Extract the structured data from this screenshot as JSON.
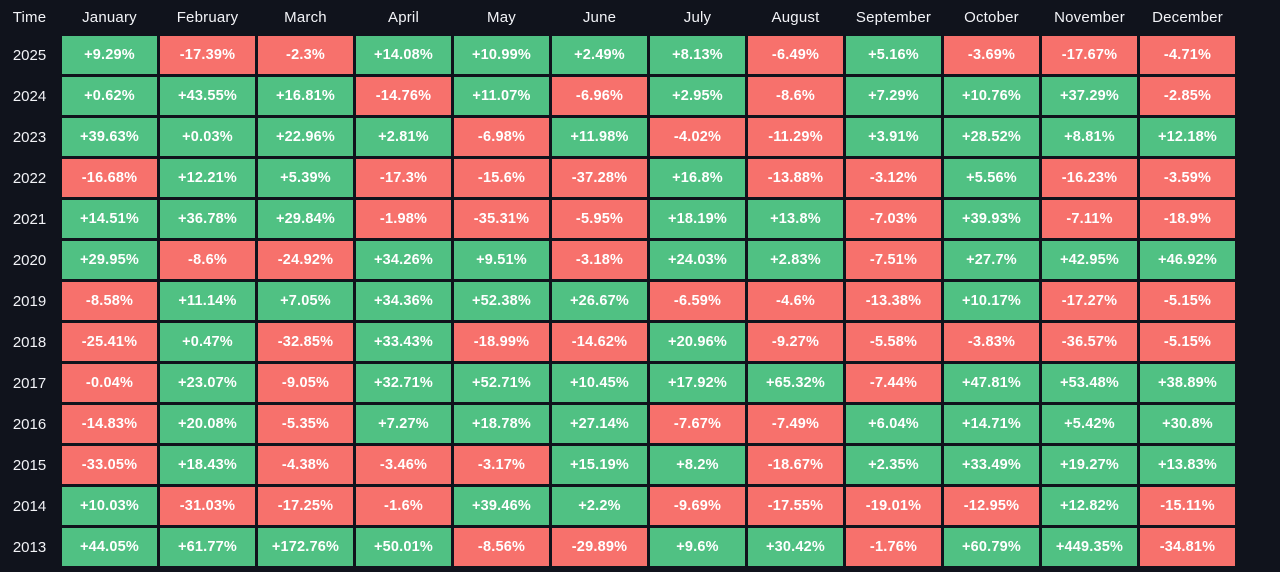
{
  "colors": {
    "positive": "#50c183",
    "negative": "#f7716c",
    "background": "#10131c",
    "text": "#ffffff"
  },
  "table": {
    "corner_label": "Time",
    "months": [
      "January",
      "February",
      "March",
      "April",
      "May",
      "June",
      "July",
      "August",
      "September",
      "October",
      "November",
      "December"
    ],
    "rows": [
      {
        "year": "2025",
        "values": [
          "+9.29%",
          "-17.39%",
          "-2.3%",
          "+14.08%",
          "+10.99%",
          "+2.49%",
          "+8.13%",
          "-6.49%",
          "+5.16%",
          "-3.69%",
          "-17.67%",
          "-4.71%"
        ]
      },
      {
        "year": "2024",
        "values": [
          "+0.62%",
          "+43.55%",
          "+16.81%",
          "-14.76%",
          "+11.07%",
          "-6.96%",
          "+2.95%",
          "-8.6%",
          "+7.29%",
          "+10.76%",
          "+37.29%",
          "-2.85%"
        ]
      },
      {
        "year": "2023",
        "values": [
          "+39.63%",
          "+0.03%",
          "+22.96%",
          "+2.81%",
          "-6.98%",
          "+11.98%",
          "-4.02%",
          "-11.29%",
          "+3.91%",
          "+28.52%",
          "+8.81%",
          "+12.18%"
        ]
      },
      {
        "year": "2022",
        "values": [
          "-16.68%",
          "+12.21%",
          "+5.39%",
          "-17.3%",
          "-15.6%",
          "-37.28%",
          "+16.8%",
          "-13.88%",
          "-3.12%",
          "+5.56%",
          "-16.23%",
          "-3.59%"
        ]
      },
      {
        "year": "2021",
        "values": [
          "+14.51%",
          "+36.78%",
          "+29.84%",
          "-1.98%",
          "-35.31%",
          "-5.95%",
          "+18.19%",
          "+13.8%",
          "-7.03%",
          "+39.93%",
          "-7.11%",
          "-18.9%"
        ]
      },
      {
        "year": "2020",
        "values": [
          "+29.95%",
          "-8.6%",
          "-24.92%",
          "+34.26%",
          "+9.51%",
          "-3.18%",
          "+24.03%",
          "+2.83%",
          "-7.51%",
          "+27.7%",
          "+42.95%",
          "+46.92%"
        ]
      },
      {
        "year": "2019",
        "values": [
          "-8.58%",
          "+11.14%",
          "+7.05%",
          "+34.36%",
          "+52.38%",
          "+26.67%",
          "-6.59%",
          "-4.6%",
          "-13.38%",
          "+10.17%",
          "-17.27%",
          "-5.15%"
        ]
      },
      {
        "year": "2018",
        "values": [
          "-25.41%",
          "+0.47%",
          "-32.85%",
          "+33.43%",
          "-18.99%",
          "-14.62%",
          "+20.96%",
          "-9.27%",
          "-5.58%",
          "-3.83%",
          "-36.57%",
          "-5.15%"
        ]
      },
      {
        "year": "2017",
        "values": [
          "-0.04%",
          "+23.07%",
          "-9.05%",
          "+32.71%",
          "+52.71%",
          "+10.45%",
          "+17.92%",
          "+65.32%",
          "-7.44%",
          "+47.81%",
          "+53.48%",
          "+38.89%"
        ]
      },
      {
        "year": "2016",
        "values": [
          "-14.83%",
          "+20.08%",
          "-5.35%",
          "+7.27%",
          "+18.78%",
          "+27.14%",
          "-7.67%",
          "-7.49%",
          "+6.04%",
          "+14.71%",
          "+5.42%",
          "+30.8%"
        ]
      },
      {
        "year": "2015",
        "values": [
          "-33.05%",
          "+18.43%",
          "-4.38%",
          "-3.46%",
          "-3.17%",
          "+15.19%",
          "+8.2%",
          "-18.67%",
          "+2.35%",
          "+33.49%",
          "+19.27%",
          "+13.83%"
        ]
      },
      {
        "year": "2014",
        "values": [
          "+10.03%",
          "-31.03%",
          "-17.25%",
          "-1.6%",
          "+39.46%",
          "+2.2%",
          "-9.69%",
          "-17.55%",
          "-19.01%",
          "-12.95%",
          "+12.82%",
          "-15.11%"
        ]
      },
      {
        "year": "2013",
        "values": [
          "+44.05%",
          "+61.77%",
          "+172.76%",
          "+50.01%",
          "-8.56%",
          "-29.89%",
          "+9.6%",
          "+30.42%",
          "-1.76%",
          "+60.79%",
          "+449.35%",
          "-34.81%"
        ]
      }
    ]
  },
  "chart_data": {
    "type": "heatmap",
    "x": [
      "January",
      "February",
      "March",
      "April",
      "May",
      "June",
      "July",
      "August",
      "September",
      "October",
      "November",
      "December"
    ],
    "y": [
      "2025",
      "2024",
      "2023",
      "2022",
      "2021",
      "2020",
      "2019",
      "2018",
      "2017",
      "2016",
      "2015",
      "2014",
      "2013"
    ],
    "values": [
      [
        9.29,
        -17.39,
        -2.3,
        14.08,
        10.99,
        2.49,
        8.13,
        -6.49,
        5.16,
        -3.69,
        -17.67,
        -4.71
      ],
      [
        0.62,
        43.55,
        16.81,
        -14.76,
        11.07,
        -6.96,
        2.95,
        -8.6,
        7.29,
        10.76,
        37.29,
        -2.85
      ],
      [
        39.63,
        0.03,
        22.96,
        2.81,
        -6.98,
        11.98,
        -4.02,
        -11.29,
        3.91,
        28.52,
        8.81,
        12.18
      ],
      [
        -16.68,
        12.21,
        5.39,
        -17.3,
        -15.6,
        -37.28,
        16.8,
        -13.88,
        -3.12,
        5.56,
        -16.23,
        -3.59
      ],
      [
        14.51,
        36.78,
        29.84,
        -1.98,
        -35.31,
        -5.95,
        18.19,
        13.8,
        -7.03,
        39.93,
        -7.11,
        -18.9
      ],
      [
        29.95,
        -8.6,
        -24.92,
        34.26,
        9.51,
        -3.18,
        24.03,
        2.83,
        -7.51,
        27.7,
        42.95,
        46.92
      ],
      [
        -8.58,
        11.14,
        7.05,
        34.36,
        52.38,
        26.67,
        -6.59,
        -4.6,
        -13.38,
        10.17,
        -17.27,
        -5.15
      ],
      [
        -25.41,
        0.47,
        -32.85,
        33.43,
        -18.99,
        -14.62,
        20.96,
        -9.27,
        -5.58,
        -3.83,
        -36.57,
        -5.15
      ],
      [
        -0.04,
        23.07,
        -9.05,
        32.71,
        52.71,
        10.45,
        17.92,
        65.32,
        -7.44,
        47.81,
        53.48,
        38.89
      ],
      [
        -14.83,
        20.08,
        -5.35,
        7.27,
        18.78,
        27.14,
        -7.67,
        -7.49,
        6.04,
        14.71,
        5.42,
        30.8
      ],
      [
        -33.05,
        18.43,
        -4.38,
        -3.46,
        -3.17,
        15.19,
        8.2,
        -18.67,
        2.35,
        33.49,
        19.27,
        13.83
      ],
      [
        10.03,
        -31.03,
        -17.25,
        -1.6,
        39.46,
        2.2,
        -9.69,
        -17.55,
        -19.01,
        -12.95,
        12.82,
        -15.11
      ],
      [
        44.05,
        61.77,
        172.76,
        50.01,
        -8.56,
        -29.89,
        9.6,
        30.42,
        -1.76,
        60.79,
        449.35,
        -34.81
      ]
    ],
    "value_unit": "%",
    "color_rule": "green if positive, red if negative",
    "legend": "none",
    "grid": "dark gaps between cells"
  }
}
